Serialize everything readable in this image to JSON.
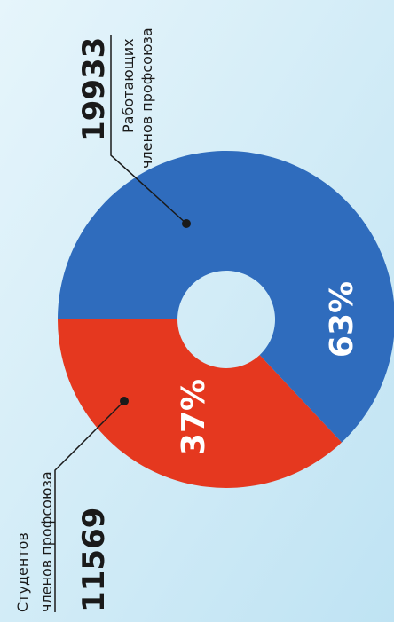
{
  "chart_data": {
    "type": "donut",
    "categories": [
      [
        "Студентов",
        "членов профсоюза"
      ],
      [
        "Работающих",
        "членов профсоюза"
      ]
    ],
    "counts": [
      "11569",
      "19933"
    ],
    "values": [
      37,
      63
    ],
    "value_labels": [
      "37%",
      "63%"
    ],
    "colors": [
      "#e5381f",
      "#2f6cbd"
    ]
  }
}
